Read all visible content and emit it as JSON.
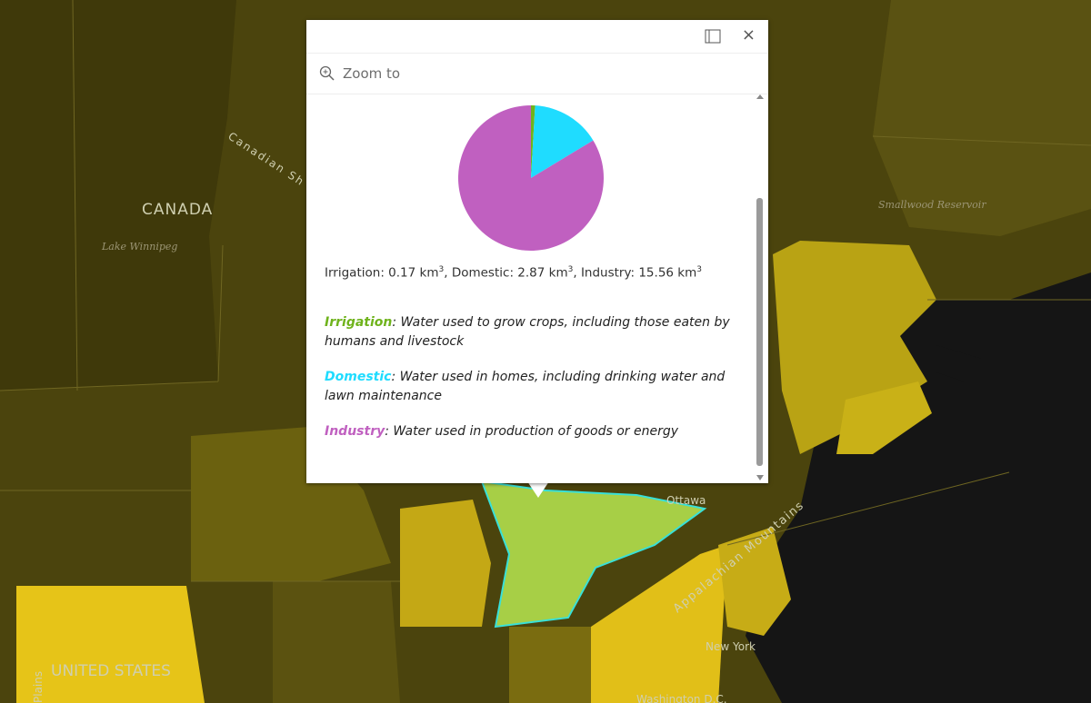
{
  "map": {
    "labels": [
      {
        "text": "CANADA"
      },
      {
        "text": "Lake Winnipeg"
      },
      {
        "text": "Canadian Sh"
      },
      {
        "text": "Smallwood Reservoir"
      },
      {
        "text": "Ottawa"
      },
      {
        "text": "Appalachian Mountains"
      },
      {
        "text": "New York"
      },
      {
        "text": "Washington D.C."
      },
      {
        "text": "UNITED STATES"
      },
      {
        "text": "Plains"
      }
    ]
  },
  "popup": {
    "zoom_label": "Zoom to",
    "close_label": "×",
    "usage": {
      "type": "pie",
      "unit": "km",
      "unit_power": "3",
      "name_separator": ": ",
      "item_separator": ", ",
      "items": [
        {
          "name": "Irrigation",
          "value": 0.17,
          "color": "#6fb31c",
          "description": "Water used to grow crops, including those eaten by humans and livestock"
        },
        {
          "name": "Domestic",
          "value": 2.87,
          "color": "#1fdcff",
          "description": "Water used in homes, including drinking water and lawn maintenance"
        },
        {
          "name": "Industry",
          "value": 15.56,
          "color": "#c060c0",
          "description": "Water used in production of goods or energy"
        }
      ]
    }
  }
}
